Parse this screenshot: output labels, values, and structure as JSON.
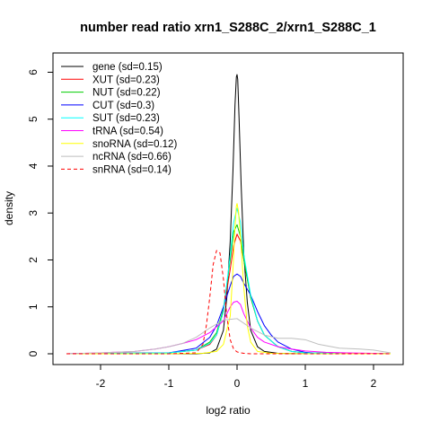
{
  "chart_data": {
    "type": "line",
    "title": "number read ratio xrn1_S288C_2/xrn1_S288C_1",
    "xlabel": "log2 ratio",
    "ylabel": "density",
    "xlim": [
      -2.5,
      2.25
    ],
    "ylim": [
      0,
      6.2
    ],
    "x_ticks": [
      -2,
      -1,
      0,
      1,
      2
    ],
    "y_ticks": [
      0,
      1,
      2,
      3,
      4,
      5,
      6
    ],
    "x_tick_labels": [
      "-2",
      "-1",
      "0",
      "1",
      "2"
    ],
    "y_tick_labels": [
      "0",
      "1",
      "2",
      "3",
      "4",
      "5",
      "6"
    ],
    "grid": false,
    "legend_position": "top-left",
    "series": [
      {
        "name": "gene (sd=0.15)",
        "color": "#000000",
        "dash": "solid",
        "x": [
          -2.5,
          -1.0,
          -0.6,
          -0.4,
          -0.3,
          -0.2,
          -0.15,
          -0.1,
          -0.06,
          -0.03,
          -0.01,
          0.0,
          0.01,
          0.03,
          0.06,
          0.1,
          0.15,
          0.2,
          0.3,
          0.4,
          0.6,
          1.0,
          2.25
        ],
        "y": [
          0,
          0,
          0,
          0.02,
          0.1,
          0.5,
          1.2,
          2.4,
          3.9,
          5.3,
          5.9,
          5.95,
          5.85,
          5.0,
          3.6,
          2.1,
          1.1,
          0.5,
          0.15,
          0.05,
          0.01,
          0,
          0
        ]
      },
      {
        "name": "XUT (sd=0.23)",
        "color": "#ff0000",
        "dash": "solid",
        "x": [
          -2.5,
          -1.0,
          -0.6,
          -0.4,
          -0.3,
          -0.2,
          -0.1,
          -0.05,
          0.0,
          0.05,
          0.1,
          0.2,
          0.3,
          0.4,
          0.6,
          0.8,
          1.0,
          2.25
        ],
        "y": [
          0,
          0.02,
          0.08,
          0.2,
          0.4,
          0.9,
          1.8,
          2.3,
          2.55,
          2.4,
          2.0,
          1.2,
          0.7,
          0.4,
          0.15,
          0.05,
          0.02,
          0
        ]
      },
      {
        "name": "NUT (sd=0.22)",
        "color": "#00cd00",
        "dash": "solid",
        "x": [
          -2.5,
          -1.0,
          -0.6,
          -0.4,
          -0.3,
          -0.2,
          -0.1,
          -0.05,
          0.0,
          0.05,
          0.1,
          0.2,
          0.3,
          0.4,
          0.6,
          0.8,
          1.0,
          2.25
        ],
        "y": [
          0,
          0.02,
          0.08,
          0.25,
          0.45,
          0.95,
          2.0,
          2.6,
          2.75,
          2.5,
          2.0,
          1.2,
          0.7,
          0.4,
          0.15,
          0.05,
          0.02,
          0
        ]
      },
      {
        "name": "CUT (sd=0.3)",
        "color": "#0000ff",
        "dash": "solid",
        "x": [
          -2.5,
          -1.0,
          -0.6,
          -0.4,
          -0.3,
          -0.2,
          -0.1,
          -0.05,
          0.0,
          0.05,
          0.1,
          0.2,
          0.3,
          0.4,
          0.5,
          0.6,
          0.8,
          1.0,
          1.2,
          2.25
        ],
        "y": [
          0,
          0.02,
          0.12,
          0.35,
          0.6,
          1.0,
          1.45,
          1.65,
          1.7,
          1.65,
          1.5,
          1.25,
          0.9,
          0.6,
          0.4,
          0.25,
          0.1,
          0.03,
          0.01,
          0
        ]
      },
      {
        "name": "SUT (sd=0.23)",
        "color": "#00ffff",
        "dash": "solid",
        "x": [
          -2.5,
          -1.0,
          -0.6,
          -0.4,
          -0.3,
          -0.2,
          -0.1,
          -0.05,
          0.0,
          0.05,
          0.1,
          0.2,
          0.3,
          0.4,
          0.6,
          0.8,
          1.0,
          2.25
        ],
        "y": [
          0,
          0.02,
          0.08,
          0.22,
          0.4,
          0.9,
          2.1,
          2.8,
          3.1,
          2.8,
          2.1,
          1.25,
          0.7,
          0.4,
          0.15,
          0.05,
          0.02,
          0
        ]
      },
      {
        "name": "tRNA (sd=0.54)",
        "color": "#ff00ff",
        "dash": "solid",
        "x": [
          -2.5,
          -2.0,
          -1.5,
          -1.2,
          -1.0,
          -0.8,
          -0.6,
          -0.4,
          -0.2,
          -0.1,
          -0.05,
          0.0,
          0.05,
          0.1,
          0.2,
          0.3,
          0.4,
          0.6,
          0.8,
          1.0,
          1.3,
          1.6,
          2.0,
          2.25
        ],
        "y": [
          0,
          0.02,
          0.05,
          0.1,
          0.15,
          0.22,
          0.3,
          0.45,
          0.7,
          1.0,
          1.1,
          1.12,
          1.05,
          0.85,
          0.55,
          0.35,
          0.25,
          0.15,
          0.1,
          0.06,
          0.03,
          0.02,
          0.01,
          0
        ]
      },
      {
        "name": "snoRNA (sd=0.12)",
        "color": "#ffff00",
        "dash": "solid",
        "x": [
          -2.5,
          -1.0,
          -0.5,
          -0.3,
          -0.2,
          -0.1,
          -0.06,
          -0.03,
          -0.01,
          0.0,
          0.02,
          0.05,
          0.1,
          0.15,
          0.2,
          0.3,
          0.5,
          1.0,
          2.25
        ],
        "y": [
          0,
          0,
          0.01,
          0.05,
          0.2,
          0.8,
          1.8,
          2.7,
          3.15,
          3.2,
          3.05,
          2.5,
          1.4,
          0.6,
          0.25,
          0.05,
          0.01,
          0,
          0
        ]
      },
      {
        "name": "ncRNA (sd=0.66)",
        "color": "#bebebe",
        "dash": "solid",
        "x": [
          -2.5,
          -2.0,
          -1.5,
          -1.2,
          -1.0,
          -0.8,
          -0.6,
          -0.4,
          -0.2,
          0.0,
          0.2,
          0.4,
          0.6,
          0.8,
          1.0,
          1.2,
          1.5,
          1.8,
          2.0,
          2.25
        ],
        "y": [
          0,
          0.02,
          0.05,
          0.1,
          0.15,
          0.22,
          0.35,
          0.55,
          0.72,
          0.75,
          0.55,
          0.4,
          0.33,
          0.33,
          0.3,
          0.2,
          0.12,
          0.1,
          0.08,
          0.02
        ]
      },
      {
        "name": "snRNA (sd=0.14)",
        "color": "#ff0000",
        "dash": "dashed",
        "x": [
          -2.5,
          -1.0,
          -0.6,
          -0.5,
          -0.45,
          -0.4,
          -0.35,
          -0.3,
          -0.25,
          -0.2,
          -0.15,
          -0.1,
          -0.05,
          0.0,
          0.05,
          0.1,
          0.2,
          0.4,
          1.0,
          2.25
        ],
        "y": [
          0,
          0,
          0.02,
          0.2,
          0.6,
          1.2,
          1.9,
          2.2,
          2.15,
          1.6,
          0.8,
          0.3,
          0.1,
          0.04,
          0.02,
          0.01,
          0,
          0,
          0,
          0
        ]
      }
    ]
  }
}
